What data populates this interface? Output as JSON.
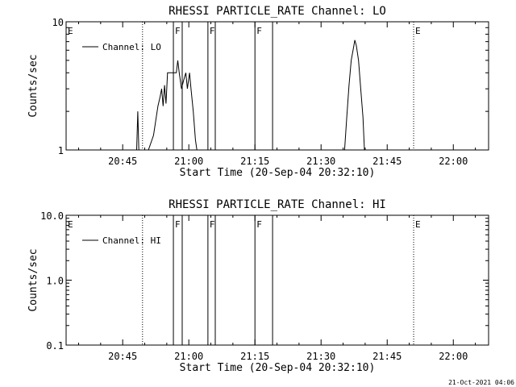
{
  "footer": {
    "timestamp": "21-Oct-2021 04:06"
  },
  "chart_data": [
    {
      "type": "line",
      "title": "RHESSI PARTICLE_RATE Channel: LO",
      "xlabel": "Start Time (20-Sep-04 20:32:10)",
      "ylabel": "Counts/sec",
      "y_scale": "log",
      "ylim": [
        1,
        10
      ],
      "xlim": [
        "20:32:10",
        "22:08:00"
      ],
      "xticks": [
        "20:45",
        "21:00",
        "21:15",
        "21:30",
        "21:45",
        "22:00"
      ],
      "yticks": [
        "1",
        "10"
      ],
      "legend": {
        "entries": [
          "Channel: LO"
        ],
        "position": "top-left"
      },
      "grid": false,
      "series": [
        {
          "name": "Channel: LO",
          "points": [
            [
              "20:48:10",
              1
            ],
            [
              "20:48:25",
              2
            ],
            [
              "20:48:40",
              1
            ],
            [
              "20:50:50",
              1
            ],
            [
              "20:52:00",
              1.3
            ],
            [
              "20:53:00",
              2.2
            ],
            [
              "20:53:30",
              2.6
            ],
            [
              "20:53:50",
              3.0
            ],
            [
              "20:54:10",
              2.2
            ],
            [
              "20:54:30",
              3.2
            ],
            [
              "20:54:50",
              2.3
            ],
            [
              "20:55:10",
              4.0
            ],
            [
              "20:55:40",
              4.0
            ],
            [
              "20:56:10",
              4.0
            ],
            [
              "20:56:40",
              4.0
            ],
            [
              "20:57:10",
              4.0
            ],
            [
              "20:57:30",
              5.0
            ],
            [
              "20:57:50",
              4.0
            ],
            [
              "20:58:20",
              3.0
            ],
            [
              "20:58:50",
              3.5
            ],
            [
              "20:59:20",
              4.0
            ],
            [
              "20:59:40",
              3.0
            ],
            [
              "21:00:10",
              4.0
            ],
            [
              "21:00:30",
              3.0
            ],
            [
              "21:01:00",
              2.0
            ],
            [
              "21:01:30",
              1.2
            ],
            [
              "21:01:50",
              1
            ],
            [
              "21:35:20",
              1
            ],
            [
              "21:35:50",
              1.8
            ],
            [
              "21:36:20",
              3.2
            ],
            [
              "21:36:50",
              5.0
            ],
            [
              "21:37:20",
              6.2
            ],
            [
              "21:37:40",
              7.2
            ],
            [
              "21:38:00",
              6.5
            ],
            [
              "21:38:30",
              5.0
            ],
            [
              "21:39:00",
              3.0
            ],
            [
              "21:39:30",
              1.8
            ],
            [
              "21:39:50",
              1
            ]
          ]
        }
      ],
      "markers": [
        {
          "label": "E",
          "time": "20:32:10",
          "style": "none"
        },
        {
          "label": "",
          "time": "20:49:30",
          "style": "dotted"
        },
        {
          "label": "F",
          "time": "20:56:30",
          "style": "solid"
        },
        {
          "label": "",
          "time": "20:58:30",
          "style": "solid"
        },
        {
          "label": "F",
          "time": "21:04:20",
          "style": "solid"
        },
        {
          "label": "",
          "time": "21:06:00",
          "style": "solid"
        },
        {
          "label": "F",
          "time": "21:15:00",
          "style": "solid"
        },
        {
          "label": "",
          "time": "21:19:00",
          "style": "solid"
        },
        {
          "label": "E",
          "time": "21:51:00",
          "style": "dotted"
        },
        {
          "label": "",
          "time": "22:08:00",
          "style": "dotted"
        }
      ]
    },
    {
      "type": "line",
      "title": "RHESSI PARTICLE_RATE Channel: HI",
      "xlabel": "Start Time (20-Sep-04 20:32:10)",
      "ylabel": "Counts/sec",
      "y_scale": "log",
      "ylim": [
        0.1,
        10
      ],
      "xlim": [
        "20:32:10",
        "22:08:00"
      ],
      "xticks": [
        "20:45",
        "21:00",
        "21:15",
        "21:30",
        "21:45",
        "22:00"
      ],
      "yticks": [
        "0.1",
        "1.0",
        "10.0"
      ],
      "legend": {
        "entries": [
          "Channel: HI"
        ],
        "position": "top-left"
      },
      "grid": false,
      "series": [
        {
          "name": "Channel: HI",
          "points": []
        }
      ],
      "markers": [
        {
          "label": "E",
          "time": "20:32:10",
          "style": "none"
        },
        {
          "label": "",
          "time": "20:49:30",
          "style": "dotted"
        },
        {
          "label": "F",
          "time": "20:56:30",
          "style": "solid"
        },
        {
          "label": "",
          "time": "20:58:30",
          "style": "solid"
        },
        {
          "label": "F",
          "time": "21:04:20",
          "style": "solid"
        },
        {
          "label": "",
          "time": "21:06:00",
          "style": "solid"
        },
        {
          "label": "F",
          "time": "21:15:00",
          "style": "solid"
        },
        {
          "label": "",
          "time": "21:19:00",
          "style": "solid"
        },
        {
          "label": "E",
          "time": "21:51:00",
          "style": "dotted"
        },
        {
          "label": "",
          "time": "22:08:00",
          "style": "dotted"
        }
      ]
    }
  ]
}
